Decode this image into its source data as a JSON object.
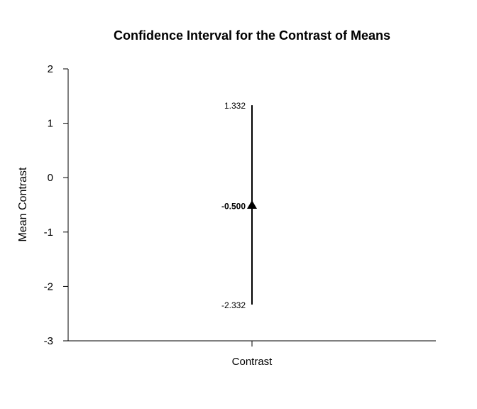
{
  "chart_data": {
    "type": "errorbar",
    "title": "Confidence Interval for the Contrast of Means",
    "ylabel": "Mean Contrast",
    "categories": [
      "Contrast"
    ],
    "ylim": [
      -3,
      2
    ],
    "yticks": [
      2,
      1,
      0,
      -1,
      -2,
      -3
    ],
    "series": [
      {
        "values": [
          -0.5
        ],
        "upper": [
          1.332
        ],
        "lower": [
          -2.332
        ],
        "labels": {
          "estimate": "-0.500",
          "upper": "1.332",
          "lower": "-2.332"
        },
        "marker": "triangle",
        "color": "#000000"
      }
    ],
    "grid": false
  }
}
